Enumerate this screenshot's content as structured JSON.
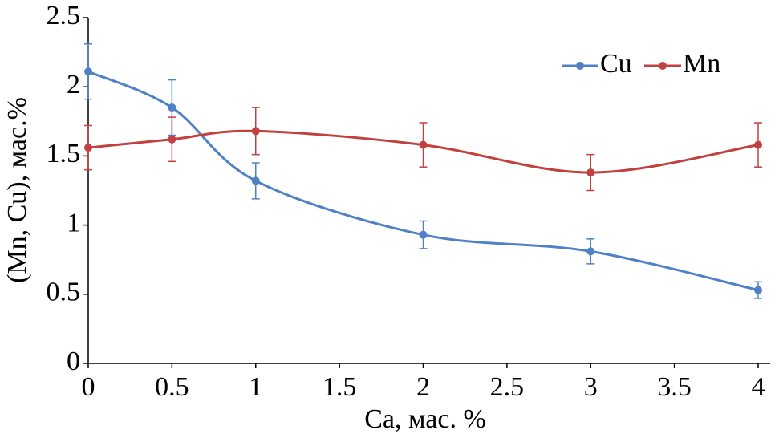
{
  "chart_data": {
    "type": "line",
    "x_label": "Ca, мас. %",
    "y_label": "(Mn, Cu), мас.%",
    "x": [
      0,
      0.5,
      1,
      2,
      3,
      4
    ],
    "series": [
      {
        "name": "Cu",
        "color": "#4f81c7",
        "values": [
          2.11,
          1.85,
          1.32,
          0.93,
          0.81,
          0.53
        ],
        "errors": [
          0.2,
          0.2,
          0.13,
          0.1,
          0.09,
          0.06
        ]
      },
      {
        "name": "Mn",
        "color": "#c0413f",
        "values": [
          1.56,
          1.62,
          1.68,
          1.58,
          1.38,
          1.58
        ],
        "errors": [
          0.16,
          0.16,
          0.17,
          0.16,
          0.13,
          0.16
        ]
      }
    ],
    "xlim": [
      0,
      4
    ],
    "xticks": [
      0,
      0.5,
      1,
      1.5,
      2,
      2.5,
      3,
      3.5,
      4
    ],
    "ylim": [
      0,
      2.5
    ],
    "yticks": [
      0,
      0.5,
      1,
      1.5,
      2,
      2.5
    ],
    "legend": "top-right"
  }
}
